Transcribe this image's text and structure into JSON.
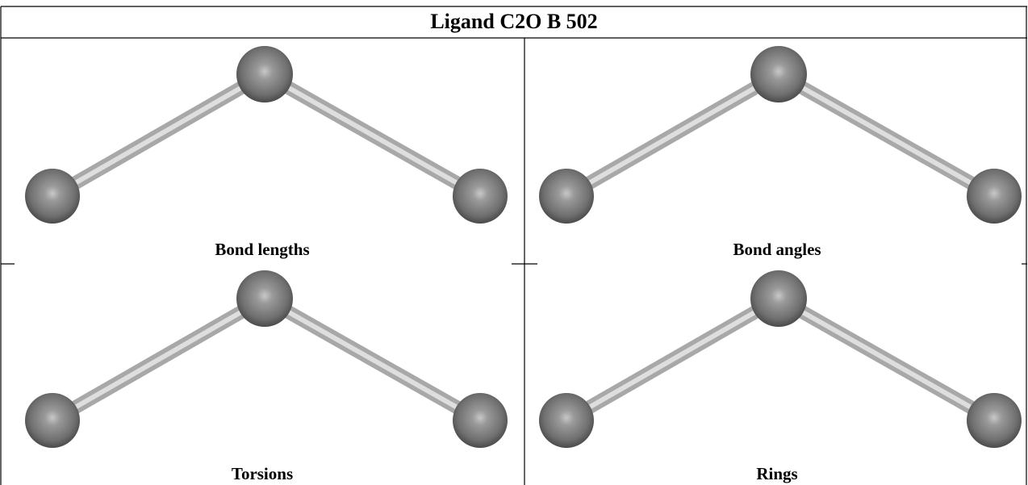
{
  "header": {
    "title": "Ligand C2O B 502"
  },
  "panels": [
    {
      "label": "Bond lengths"
    },
    {
      "label": "Bond angles"
    },
    {
      "label": "Torsions"
    },
    {
      "label": "Rings"
    }
  ]
}
